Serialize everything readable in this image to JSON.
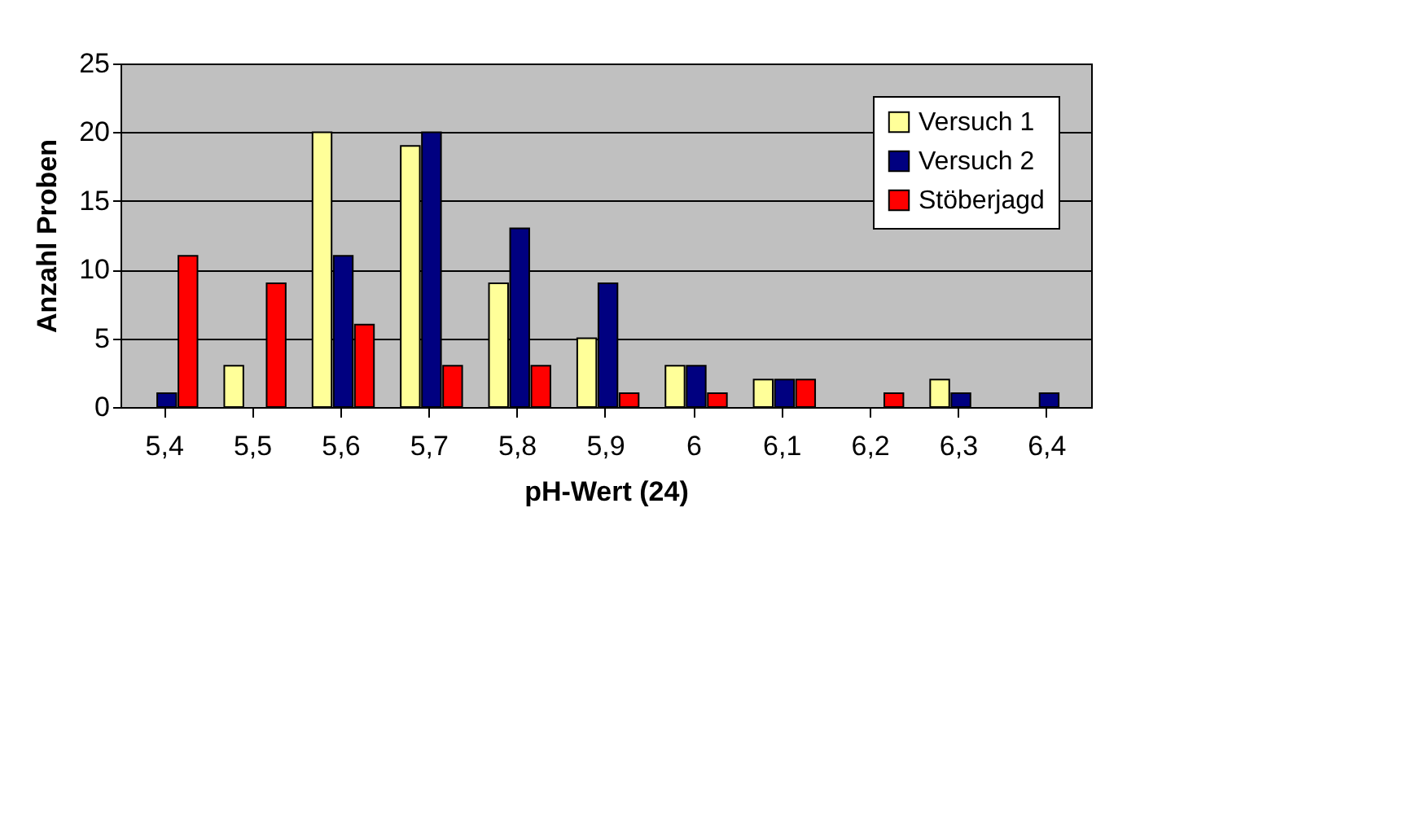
{
  "chart_data": {
    "type": "bar",
    "xlabel": "pH-Wert (24)",
    "ylabel": "Anzahl Proben",
    "categories": [
      "5,4",
      "5,5",
      "5,6",
      "5,7",
      "5,8",
      "5,9",
      "6",
      "6,1",
      "6,2",
      "6,3",
      "6,4"
    ],
    "series": [
      {
        "name": "Versuch 1",
        "color": "#ffff99",
        "values": [
          null,
          3,
          20,
          19,
          9,
          5,
          3,
          2,
          null,
          2,
          null
        ]
      },
      {
        "name": "Versuch 2",
        "color": "#000080",
        "values": [
          1,
          null,
          11,
          20,
          13,
          9,
          3,
          2,
          null,
          1,
          1
        ]
      },
      {
        "name": "Stöberjagd",
        "color": "#ff0000",
        "values": [
          11,
          9,
          6,
          3,
          3,
          1,
          1,
          2,
          1,
          null,
          null
        ]
      }
    ],
    "ylim": [
      0,
      25
    ],
    "yticks": [
      0,
      5,
      10,
      15,
      20,
      25
    ],
    "grid": "y",
    "legend": "top right"
  }
}
